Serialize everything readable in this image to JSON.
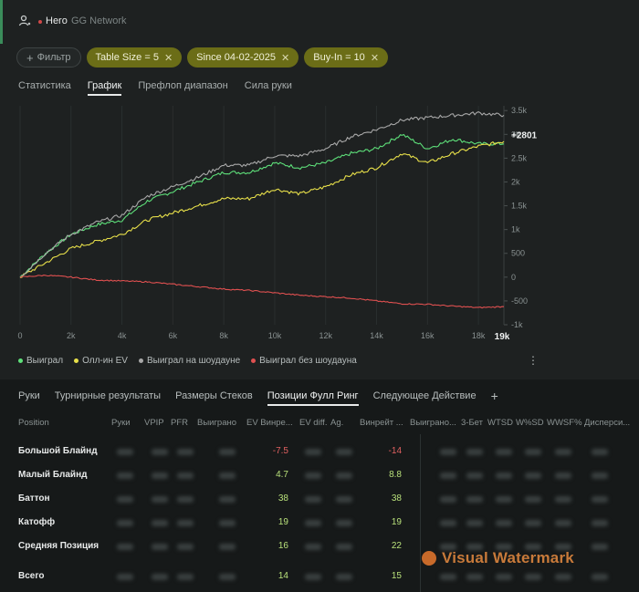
{
  "header": {
    "name": "Hero",
    "network": "GG Network"
  },
  "filters": {
    "filter_label": "Фильтр",
    "chips": [
      "Table Size = 5",
      "Since 04-02-2025",
      "Buy-In = 10"
    ]
  },
  "tabs": [
    "Статистика",
    "График",
    "Префлоп диапазон",
    "Сила руки"
  ],
  "chart_data": {
    "type": "line",
    "x_ticks": [
      "0",
      "2k",
      "4k",
      "6k",
      "8k",
      "10k",
      "12k",
      "14k",
      "16k",
      "18k"
    ],
    "x_end_label": "19k",
    "y_ticks": [
      "3.5k",
      "3k",
      "2.5k",
      "2k",
      "1.5k",
      "1k",
      "500",
      "0",
      "-500",
      "-1k"
    ],
    "xlim": [
      0,
      19000
    ],
    "ylim": [
      -1000,
      3600
    ],
    "end_value_label": "+2801",
    "x": [
      0,
      1000,
      2000,
      3000,
      4000,
      5000,
      6000,
      7000,
      8000,
      9000,
      10000,
      11000,
      12000,
      13000,
      14000,
      15000,
      16000,
      17000,
      18000,
      19000
    ],
    "series": [
      {
        "name": "Выиграл",
        "color": "#5ee07a",
        "values": [
          0,
          500,
          900,
          1100,
          1200,
          1600,
          1800,
          2000,
          2200,
          2200,
          2400,
          2300,
          2400,
          2600,
          2700,
          3000,
          2700,
          2900,
          2800,
          2801
        ]
      },
      {
        "name": "Олл-ин EV",
        "color": "#e8e04a",
        "values": [
          0,
          300,
          600,
          750,
          900,
          1200,
          1350,
          1500,
          1650,
          1650,
          1850,
          1750,
          1900,
          2150,
          2300,
          2600,
          2400,
          2600,
          2750,
          2850
        ]
      },
      {
        "name": "Выиграл на шоудауне",
        "color": "#a8a8a8",
        "values": [
          0,
          500,
          900,
          1150,
          1300,
          1700,
          1900,
          2100,
          2350,
          2350,
          2550,
          2550,
          2700,
          2950,
          3100,
          3300,
          3350,
          3400,
          3450,
          3400
        ]
      },
      {
        "name": "Выиграл без шоудауна",
        "color": "#e05050",
        "values": [
          0,
          40,
          0,
          -60,
          -80,
          -100,
          -150,
          -200,
          -250,
          -280,
          -330,
          -380,
          -410,
          -440,
          -500,
          -560,
          -570,
          -610,
          -640,
          -620
        ]
      }
    ]
  },
  "legend": [
    "Выиграл",
    "Олл-ин EV",
    "Выиграл на шоудауне",
    "Выиграл без шоудауна"
  ],
  "bottom_tabs": [
    "Руки",
    "Турнирные результаты",
    "Размеры Стеков",
    "Позиции Фулл Ринг",
    "Следующее Действие"
  ],
  "table": {
    "columns": [
      "Position",
      "Руки",
      "VPIP",
      "PFR",
      "Выиграно",
      "EV Винре...",
      "EV diff.",
      "Ag.",
      "Винрейт ...",
      "Выиграно...",
      "3-Бет",
      "WTSD",
      "W%SD",
      "WWSF%",
      "Дисперси..."
    ],
    "rows": [
      {
        "position": "Большой Блайнд",
        "ev_winrate": "-7.5",
        "winrate": "-14"
      },
      {
        "position": "Малый Блайнд",
        "ev_winrate": "4.7",
        "winrate": "8.8"
      },
      {
        "position": "Баттон",
        "ev_winrate": "38",
        "winrate": "38"
      },
      {
        "position": "Катофф",
        "ev_winrate": "19",
        "winrate": "19"
      },
      {
        "position": "Средняя Позиция",
        "ev_winrate": "16",
        "winrate": "22"
      }
    ],
    "total": {
      "position": "Всего",
      "ev_winrate": "14",
      "winrate": "15"
    }
  },
  "watermark": "Visual Watermark",
  "colors": {
    "accent_olive": "#6b6d17",
    "positive": "#b8e07a",
    "negative": "#e06060"
  }
}
